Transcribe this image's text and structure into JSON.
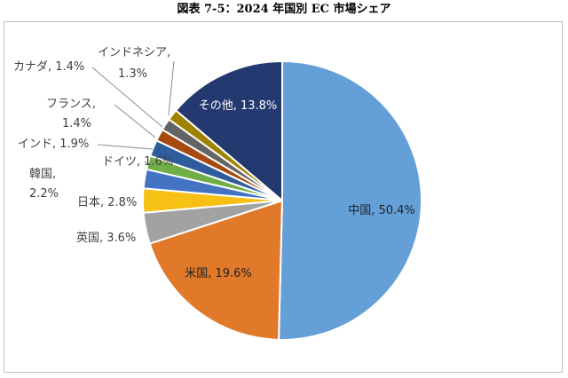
{
  "figure_title": "図表 7-5：2024 年国別 EC 市場シェア",
  "chart_data": {
    "type": "pie",
    "title": "",
    "unit": "%",
    "start": "12 o'clock, clockwise",
    "slices": [
      {
        "label": "中国, 50.4%",
        "category": "中国",
        "value": 50.4,
        "color": "#659fd8"
      },
      {
        "label": "米国, 19.6%",
        "category": "米国",
        "value": 19.6,
        "color": "#e07a2a"
      },
      {
        "label": "英国, 3.6%",
        "category": "英国",
        "value": 3.6,
        "color": "#a2a2a2"
      },
      {
        "label": "日本, 2.8%",
        "category": "日本",
        "value": 2.8,
        "color": "#f6c015"
      },
      {
        "label": [
          "韓国,",
          "2.2%"
        ],
        "category": "韓国",
        "value": 2.2,
        "color": "#4472c4"
      },
      {
        "label": "ドイツ, 1.6%",
        "category": "ドイツ",
        "value": 1.6,
        "color": "#70ad47"
      },
      {
        "label": "インド, 1.9%",
        "category": "インド",
        "value": 1.9,
        "color": "#2f5d9c"
      },
      {
        "label": [
          "フランス,",
          "1.4%"
        ],
        "category": "フランス",
        "value": 1.4,
        "color": "#a64a10"
      },
      {
        "label": "カナダ, 1.4%",
        "category": "カナダ",
        "value": 1.4,
        "color": "#646464"
      },
      {
        "label": [
          "インドネシア,",
          "1.3%"
        ],
        "category": "インドネシア",
        "value": 1.3,
        "color": "#9f8200"
      },
      {
        "label": "その他, 13.8%",
        "category": "その他",
        "value": 13.8,
        "color": "#23396f"
      }
    ]
  }
}
